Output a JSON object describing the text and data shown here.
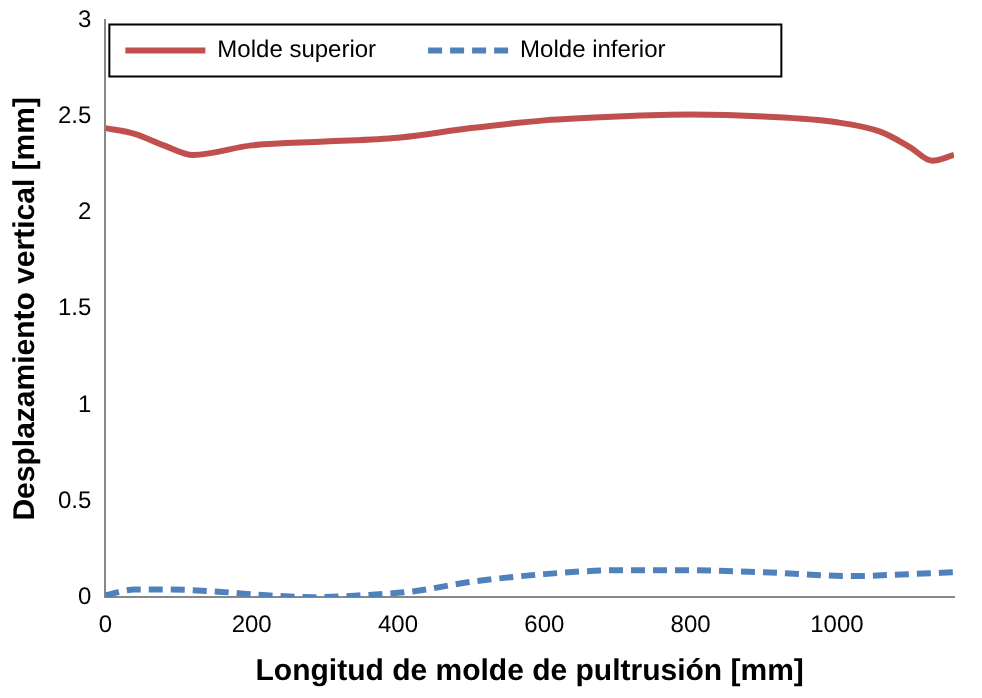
{
  "chart_data": {
    "type": "line",
    "xlabel": "Longitud de molde de pultrusión [mm]",
    "ylabel": "Desplazamiento vertical [mm]",
    "xlim": [
      0,
      1160
    ],
    "xticks": [
      0,
      200,
      400,
      600,
      800,
      1000
    ],
    "ylim": [
      0,
      3
    ],
    "yticks": [
      0,
      0.5,
      1,
      1.5,
      2,
      2.5,
      3
    ],
    "grid": false,
    "legend": "top",
    "marker": "none",
    "series": [
      {
        "name": "Molde superior",
        "color": "#c0504d",
        "line_style": "solid",
        "x": [
          0,
          40,
          80,
          120,
          200,
          300,
          400,
          500,
          600,
          700,
          800,
          900,
          1000,
          1060,
          1100,
          1130,
          1160
        ],
        "values": [
          2.44,
          2.41,
          2.35,
          2.3,
          2.35,
          2.37,
          2.39,
          2.44,
          2.48,
          2.5,
          2.51,
          2.5,
          2.47,
          2.42,
          2.34,
          2.27,
          2.3
        ]
      },
      {
        "name": "Molde inferior",
        "color": "#4f81bd",
        "line_style": "dashed",
        "x": [
          0,
          40,
          85,
          150,
          220,
          285,
          350,
          420,
          500,
          600,
          700,
          790,
          900,
          1020,
          1100,
          1160
        ],
        "values": [
          0.01,
          0.04,
          0.04,
          0.03,
          0.01,
          0,
          0.01,
          0.03,
          0.08,
          0.12,
          0.14,
          0.14,
          0.13,
          0.11,
          0.12,
          0.13
        ]
      }
    ]
  }
}
